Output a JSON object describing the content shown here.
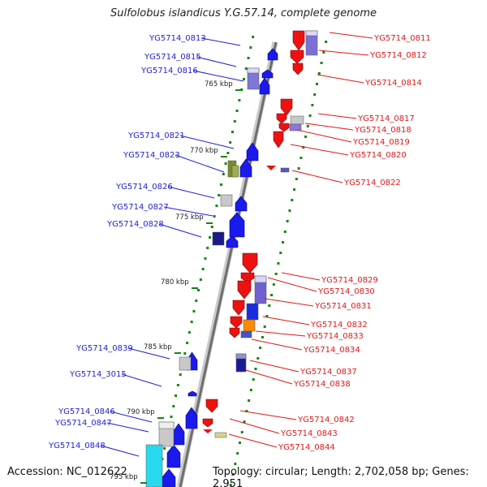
{
  "title": "Sulfolobus islandicus Y.G.57.14, complete genome",
  "accession": "Accession: NC_012622",
  "topology": "Topology: circular; Length: 2,702,058 bp; Genes: 2,951",
  "colors": {
    "left_labels": "#1f1fd6",
    "right_labels": "#e01818",
    "forward_genes": "#ee1111",
    "reverse_genes": "#1a1aee",
    "backbone": "#7a7a7a",
    "ticks": "#118811"
  },
  "scale_labels": [
    "765 kbp",
    "770 kbp",
    "775 kbp",
    "780 kbp",
    "785 kbp",
    "790 kbp",
    "795 kbp"
  ],
  "left_genes": [
    "YG5714_0813",
    "YG5714_0815",
    "YG5714_0816",
    "YG5714_0821",
    "YG5714_0823",
    "YG5714_0826",
    "YG5714_0827",
    "YG5714_0828",
    "YG5714_0839",
    "YG5714_3015",
    "YG5714_0846",
    "YG5714_0847",
    "YG5714_0848"
  ],
  "right_genes": [
    "YG5714_0811",
    "YG5714_0812",
    "YG5714_0814",
    "YG5714_0817",
    "YG5714_0818",
    "YG5714_0819",
    "YG5714_0820",
    "YG5714_0822",
    "YG5714_0829",
    "YG5714_0830",
    "YG5714_0831",
    "YG5714_0832",
    "YG5714_0833",
    "YG5714_0834",
    "YG5714_0837",
    "YG5714_0838",
    "YG5714_0842",
    "YG5714_0843",
    "YG5714_0844"
  ]
}
